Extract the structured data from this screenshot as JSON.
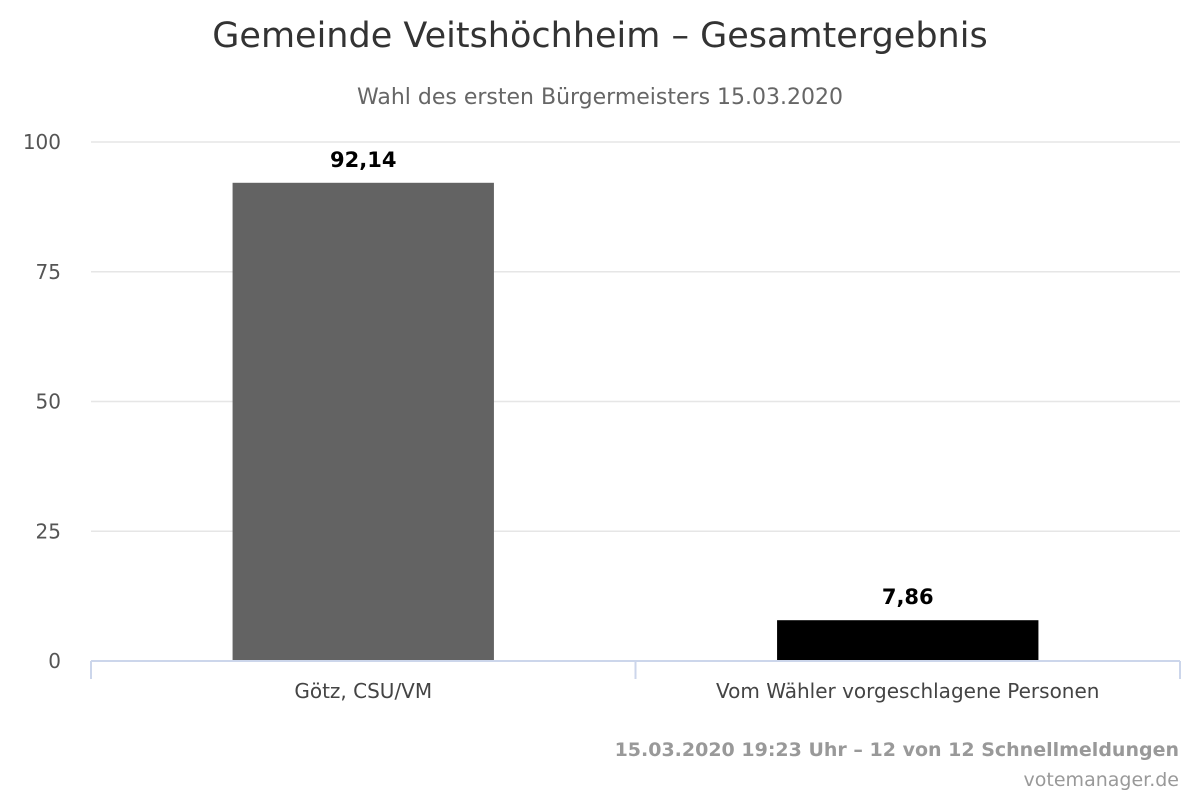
{
  "chart_data": {
    "type": "bar",
    "title": "Gemeinde Veitshöchheim – Gesamtergebnis",
    "subtitle": "Wahl des ersten Bürgermeisters 15.03.2020",
    "categories": [
      "Götz, CSU/VM",
      "Vom Wähler vorgeschlagene Personen"
    ],
    "values": [
      92.14,
      7.86
    ],
    "value_labels": [
      "92,14",
      "7,86"
    ],
    "colors": [
      "#636363",
      "#000000"
    ],
    "ylim": [
      0,
      100
    ],
    "yticks": [
      0,
      25,
      50,
      75,
      100
    ],
    "grid": true,
    "xlabel": "",
    "ylabel": ""
  },
  "footer": {
    "status": "15.03.2020 19:23 Uhr – 12 von 12 Schnellmeldungen",
    "source": "votemanager.de"
  }
}
